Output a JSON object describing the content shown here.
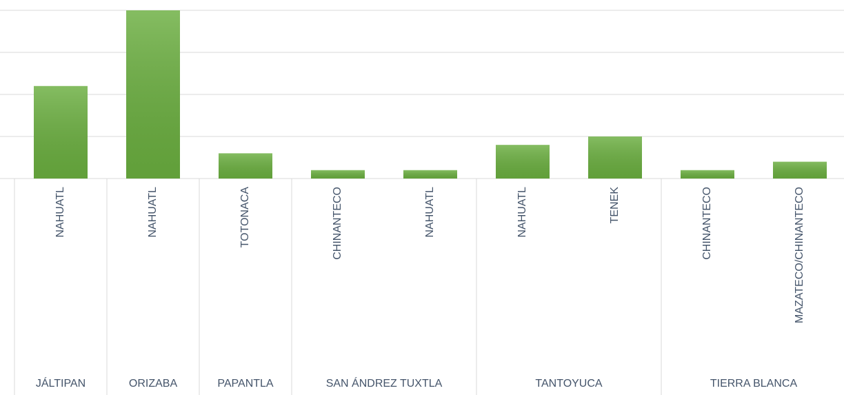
{
  "chart_data": {
    "type": "bar",
    "color": "#6aae3f",
    "groups": [
      {
        "name": "JÁLTIPAN",
        "categories": [
          "NAHUATL"
        ],
        "values": [
          2.2
        ]
      },
      {
        "name": "ORIZABA",
        "categories": [
          "NAHUATL"
        ],
        "values": [
          4.0
        ]
      },
      {
        "name": "PAPANTLA",
        "categories": [
          "TOTONACA"
        ],
        "values": [
          0.6
        ]
      },
      {
        "name": "SAN ÁNDREZ TUXTLA",
        "categories": [
          "CHINANTECO",
          "NAHUATL"
        ],
        "values": [
          0.2,
          0.2
        ]
      },
      {
        "name": "TANTOYUCA",
        "categories": [
          "NAHUATL",
          "TENEK"
        ],
        "values": [
          0.8,
          1.0
        ]
      },
      {
        "name": "TIERRA BLANCA",
        "categories": [
          "CHINANTECO",
          "MAZATECO/CHINANTECO"
        ],
        "values": [
          0.2,
          0.4
        ]
      }
    ],
    "ylim": [
      0,
      4
    ],
    "yticks": [
      0,
      1,
      2,
      3,
      4
    ],
    "grid": true
  }
}
